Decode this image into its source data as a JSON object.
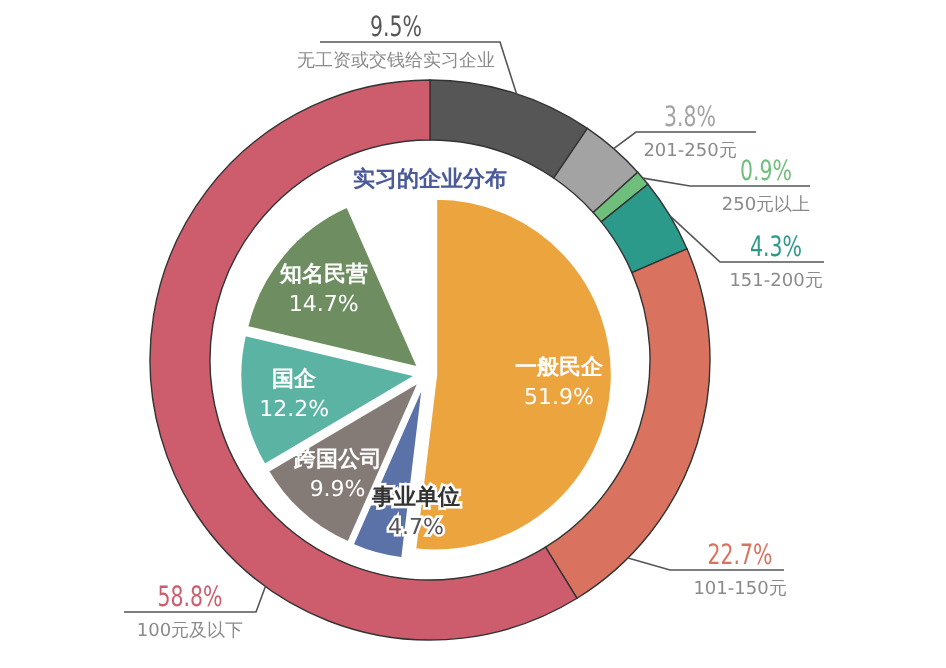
{
  "chart_data": [
    {
      "type": "donut",
      "categories": [
        "无工资或交钱给实习企业",
        "201-250元",
        "250元以上",
        "151-200元",
        "101-150元",
        "100元及以下"
      ],
      "values": [
        9.5,
        3.8,
        0.9,
        4.3,
        22.7,
        58.8
      ],
      "colors": [
        "#565656",
        "#a3a3a3",
        "#6fbf7c",
        "#2b9a8b",
        "#d9735f",
        "#cd5c6d"
      ],
      "value_labels": [
        "9.5%",
        "3.8%",
        "0.9%",
        "4.3%",
        "22.7%",
        "58.8%"
      ]
    },
    {
      "type": "pie",
      "title": "实习的企业分布",
      "categories": [
        "一般民企",
        "事业单位",
        "跨国公司",
        "国企",
        "知名民营"
      ],
      "values": [
        51.9,
        4.7,
        9.9,
        12.2,
        14.7
      ],
      "colors": [
        "#eca43f",
        "#5b72a8",
        "#857b76",
        "#5bb4a3",
        "#6e8e61"
      ],
      "value_labels": [
        "51.9%",
        "4.7%",
        "9.9%",
        "12.2%",
        "14.7%"
      ]
    }
  ]
}
